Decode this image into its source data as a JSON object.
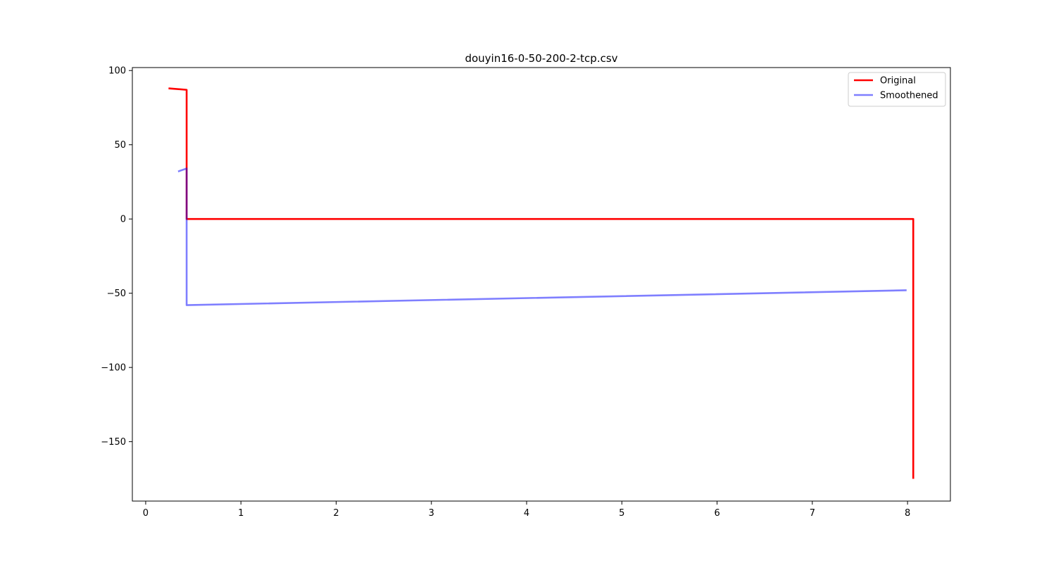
{
  "chart_data": {
    "type": "line",
    "title": "douyin16-0-50-200-2-tcp.csv",
    "xlabel": "",
    "ylabel": "",
    "xlim": [
      -0.14,
      8.45
    ],
    "ylim": [
      -190,
      102
    ],
    "xticks": [
      0,
      1,
      2,
      3,
      4,
      5,
      6,
      7,
      8
    ],
    "xtick_labels": [
      "0",
      "1",
      "2",
      "3",
      "4",
      "5",
      "6",
      "7",
      "8"
    ],
    "yticks": [
      100,
      50,
      0,
      -50,
      -100,
      -150
    ],
    "ytick_labels": [
      "100",
      "50",
      "0",
      "−50",
      "−100",
      "−150"
    ],
    "grid": false,
    "legend_position": "upper right",
    "series": [
      {
        "name": "Original",
        "color": "#ff0000",
        "opacity": 1.0,
        "x": [
          0.24,
          0.43,
          0.43,
          8.06,
          8.06
        ],
        "y": [
          88,
          87,
          0,
          0,
          -175
        ]
      },
      {
        "name": "Smoothened",
        "color": "#0000ff",
        "opacity": 0.5,
        "x": [
          0.34,
          0.43,
          0.43,
          7.99
        ],
        "y": [
          32,
          34,
          -58,
          -48
        ]
      }
    ]
  }
}
